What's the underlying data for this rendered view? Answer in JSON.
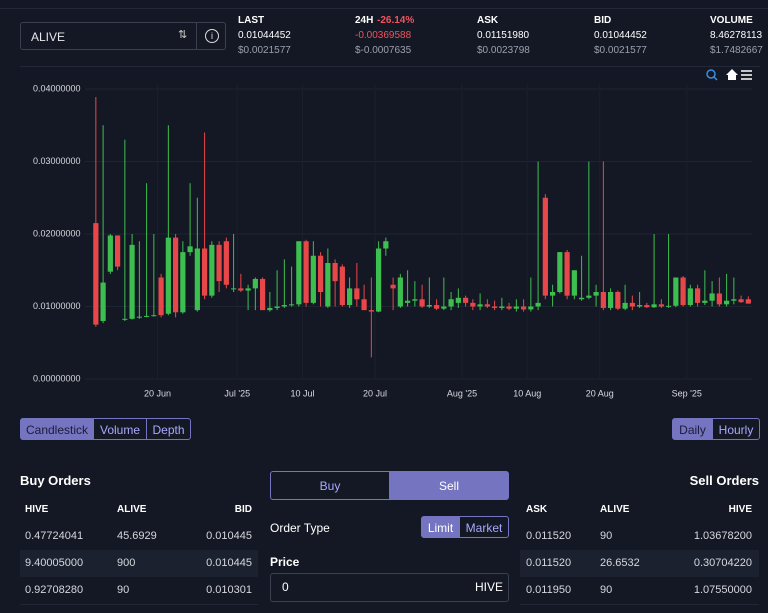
{
  "market": {
    "symbol": "ALIVE"
  },
  "ticker": [
    {
      "label": "LAST",
      "value": "0.01044452",
      "usd": "$0.0021577"
    },
    {
      "label": "24H",
      "change": "-26.14%",
      "value": "-0.00369588",
      "usd": "$-0.0007635"
    },
    {
      "label": "ASK",
      "value": "0.01151980",
      "usd": "$0.0023798"
    },
    {
      "label": "BID",
      "value": "0.01044452",
      "usd": "$0.0021577"
    },
    {
      "label": "VOLUME",
      "value": "8.46278113",
      "usd": "$1.7482667"
    }
  ],
  "chart_data": {
    "type": "candlestick",
    "x": [
      "2025-06-11",
      "2025-06-12",
      "2025-06-13",
      "2025-06-14",
      "2025-06-15",
      "2025-06-16",
      "2025-06-17",
      "2025-06-18",
      "2025-06-19",
      "2025-06-20",
      "2025-06-21",
      "2025-06-22",
      "2025-06-23",
      "2025-06-24",
      "2025-06-25",
      "2025-06-26",
      "2025-06-27",
      "2025-06-28",
      "2025-06-29",
      "2025-06-30",
      "2025-07-01",
      "2025-07-02",
      "2025-07-03",
      "2025-07-04",
      "2025-07-05",
      "2025-07-06",
      "2025-07-07",
      "2025-07-08",
      "2025-07-09",
      "2025-07-10",
      "2025-07-11",
      "2025-07-12",
      "2025-07-13",
      "2025-07-14",
      "2025-07-15",
      "2025-07-16",
      "2025-07-17",
      "2025-07-18",
      "2025-07-19",
      "2025-07-20",
      "2025-07-21",
      "2025-07-22",
      "2025-07-23",
      "2025-07-24",
      "2025-07-25",
      "2025-07-26",
      "2025-07-27",
      "2025-07-28",
      "2025-07-29",
      "2025-07-30",
      "2025-07-31",
      "2025-08-01",
      "2025-08-02",
      "2025-08-03",
      "2025-08-04",
      "2025-08-05",
      "2025-08-06",
      "2025-08-07",
      "2025-08-08",
      "2025-08-09",
      "2025-08-10",
      "2025-08-11",
      "2025-08-12",
      "2025-08-13",
      "2025-08-14",
      "2025-08-15",
      "2025-08-16",
      "2025-08-17",
      "2025-08-18",
      "2025-08-19",
      "2025-08-20",
      "2025-08-21",
      "2025-08-22",
      "2025-08-23",
      "2025-08-24",
      "2025-08-25",
      "2025-08-26",
      "2025-08-27",
      "2025-08-28",
      "2025-08-29",
      "2025-08-30",
      "2025-08-31",
      "2025-09-01",
      "2025-09-02",
      "2025-09-03",
      "2025-09-04",
      "2025-09-05",
      "2025-09-06",
      "2025-09-07",
      "2025-09-08",
      "2025-09-09"
    ],
    "open": [
      0.0215,
      0.008,
      0.0148,
      0.0198,
      0.0082,
      0.0083,
      0.0085,
      0.0086,
      0.0087,
      0.014,
      0.009,
      0.0195,
      0.0092,
      0.0175,
      0.0095,
      0.018,
      0.0115,
      0.0185,
      0.019,
      0.0125,
      0.0125,
      0.0122,
      0.0125,
      0.0138,
      0.0095,
      0.0098,
      0.01,
      0.0102,
      0.0103,
      0.019,
      0.0105,
      0.017,
      0.01,
      0.016,
      0.0155,
      0.0102,
      0.0125,
      0.011,
      0.0095,
      0.0093,
      0.018,
      0.013,
      0.01,
      0.0105,
      0.0108,
      0.011,
      0.01,
      0.0102,
      0.0097,
      0.01,
      0.0105,
      0.0112,
      0.0105,
      0.01,
      0.0103,
      0.01,
      0.0098,
      0.01,
      0.0097,
      0.01,
      0.0096,
      0.01,
      0.025,
      0.0115,
      0.012,
      0.0175,
      0.0115,
      0.011,
      0.0112,
      0.0115,
      0.012,
      0.0098,
      0.012,
      0.0097,
      0.0105,
      0.01,
      0.0102,
      0.0099,
      0.0103,
      0.01,
      0.0101,
      0.014,
      0.0102,
      0.0125,
      0.0105,
      0.0108,
      0.0118,
      0.0103,
      0.0108,
      0.011,
      0.011
    ],
    "high": [
      0.0389,
      0.035,
      0.02,
      0.0198,
      0.033,
      0.02,
      0.019,
      0.027,
      0.02,
      0.0145,
      0.035,
      0.02,
      0.019,
      0.027,
      0.025,
      0.034,
      0.019,
      0.019,
      0.0195,
      0.02,
      0.0145,
      0.013,
      0.014,
      0.014,
      0.012,
      0.015,
      0.0165,
      0.0155,
      0.019,
      0.0192,
      0.019,
      0.0175,
      0.018,
      0.0165,
      0.0158,
      0.014,
      0.016,
      0.013,
      0.014,
      0.019,
      0.0195,
      0.014,
      0.0145,
      0.015,
      0.0135,
      0.013,
      0.014,
      0.011,
      0.014,
      0.012,
      0.0125,
      0.0115,
      0.011,
      0.0118,
      0.011,
      0.0108,
      0.0112,
      0.0105,
      0.011,
      0.011,
      0.014,
      0.03,
      0.0255,
      0.013,
      0.0175,
      0.0178,
      0.015,
      0.017,
      0.03,
      0.013,
      0.03,
      0.0125,
      0.0122,
      0.013,
      0.0115,
      0.012,
      0.0105,
      0.02,
      0.011,
      0.02,
      0.014,
      0.0142,
      0.013,
      0.013,
      0.015,
      0.0135,
      0.014,
      0.0145,
      0.014,
      0.0115,
      0.0114
    ],
    "low": [
      0.0072,
      0.0077,
      0.0145,
      0.015,
      0.008,
      0.0082,
      0.0083,
      0.0085,
      0.0086,
      0.0085,
      0.0088,
      0.0085,
      0.009,
      0.017,
      0.0093,
      0.011,
      0.0112,
      0.012,
      0.0125,
      0.012,
      0.012,
      0.0095,
      0.0095,
      0.0095,
      0.0093,
      0.0095,
      0.0098,
      0.01,
      0.01,
      0.01,
      0.0103,
      0.01,
      0.0098,
      0.01,
      0.01,
      0.0098,
      0.01,
      0.0095,
      0.003,
      0.0092,
      0.017,
      0.0095,
      0.0098,
      0.01,
      0.01,
      0.0098,
      0.0098,
      0.0095,
      0.0095,
      0.0095,
      0.0098,
      0.01,
      0.0095,
      0.0095,
      0.0098,
      0.0095,
      0.0095,
      0.0095,
      0.0093,
      0.0093,
      0.0093,
      0.0095,
      0.011,
      0.01,
      0.0118,
      0.011,
      0.011,
      0.0108,
      0.011,
      0.01,
      0.0095,
      0.0095,
      0.0095,
      0.0095,
      0.0095,
      0.0098,
      0.0098,
      0.0098,
      0.0098,
      0.0098,
      0.0099,
      0.01,
      0.01,
      0.01,
      0.0102,
      0.01,
      0.01,
      0.01,
      0.0103,
      0.0105,
      0.0104
    ],
    "close": [
      0.0075,
      0.0133,
      0.0198,
      0.0155,
      0.0083,
      0.0185,
      0.0086,
      0.0087,
      0.0088,
      0.0088,
      0.0195,
      0.0092,
      0.0175,
      0.0183,
      0.018,
      0.0115,
      0.0185,
      0.0135,
      0.013,
      0.0125,
      0.0122,
      0.0125,
      0.0138,
      0.0095,
      0.0098,
      0.01,
      0.0102,
      0.0103,
      0.019,
      0.0105,
      0.017,
      0.012,
      0.016,
      0.0135,
      0.0102,
      0.0125,
      0.011,
      0.0095,
      0.0093,
      0.018,
      0.019,
      0.0125,
      0.014,
      0.0108,
      0.011,
      0.01,
      0.0102,
      0.0097,
      0.01,
      0.011,
      0.0112,
      0.0105,
      0.01,
      0.0103,
      0.01,
      0.0098,
      0.01,
      0.0097,
      0.01,
      0.0096,
      0.01,
      0.0105,
      0.0115,
      0.012,
      0.0175,
      0.0115,
      0.015,
      0.0112,
      0.0115,
      0.012,
      0.0098,
      0.012,
      0.0097,
      0.0105,
      0.01,
      0.0102,
      0.0099,
      0.0103,
      0.01,
      0.0101,
      0.014,
      0.0102,
      0.0125,
      0.0105,
      0.0108,
      0.0118,
      0.0103,
      0.0108,
      0.011,
      0.0106,
      0.0104
    ],
    "up_color": "#3cbf4f",
    "down_color": "#e8474a",
    "xlim": [
      "2025-06-10",
      "2025-09-10"
    ],
    "xticks": [
      {
        "value": "2025-06-20",
        "label": "20 Jun"
      },
      {
        "value": "2025-07-01",
        "label": "Jul '25"
      },
      {
        "value": "2025-07-10",
        "label": "10 Jul"
      },
      {
        "value": "2025-07-20",
        "label": "20 Jul"
      },
      {
        "value": "2025-08-01",
        "label": "Aug '25"
      },
      {
        "value": "2025-08-10",
        "label": "10 Aug"
      },
      {
        "value": "2025-08-20",
        "label": "20 Aug"
      },
      {
        "value": "2025-09-01",
        "label": "Sep '25"
      }
    ],
    "ylim": [
      0,
      0.04
    ],
    "yticks": [
      {
        "value": 0,
        "label": "0.00000000"
      },
      {
        "value": 0.01,
        "label": "0.01000000"
      },
      {
        "value": 0.02,
        "label": "0.02000000"
      },
      {
        "value": 0.03,
        "label": "0.03000000"
      },
      {
        "value": 0.04,
        "label": "0.04000000"
      }
    ],
    "grid": true
  },
  "chart_tabs": [
    "Candlestick",
    "Volume",
    "Depth"
  ],
  "interval_tabs": [
    "Daily",
    "Hourly"
  ],
  "buy_orders": {
    "title": "Buy Orders",
    "columns": [
      "HIVE",
      "ALIVE",
      "BID"
    ],
    "rows": [
      [
        "0.47724041",
        "45.6929",
        "0.010445"
      ],
      [
        "9.40005000",
        "900",
        "0.010445"
      ],
      [
        "0.92708280",
        "90",
        "0.010301"
      ]
    ]
  },
  "order_form": {
    "sides": [
      "Buy",
      "Sell"
    ],
    "order_type_label": "Order Type",
    "order_types": [
      "Limit",
      "Market"
    ],
    "price_label": "Price",
    "price_value": "0",
    "price_unit": "HIVE"
  },
  "sell_orders": {
    "title": "Sell Orders",
    "columns": [
      "ASK",
      "ALIVE",
      "HIVE"
    ],
    "rows": [
      [
        "0.011520",
        "90",
        "1.03678200"
      ],
      [
        "0.011520",
        "26.6532",
        "0.30704220"
      ],
      [
        "0.011950",
        "90",
        "1.07550000"
      ]
    ]
  }
}
